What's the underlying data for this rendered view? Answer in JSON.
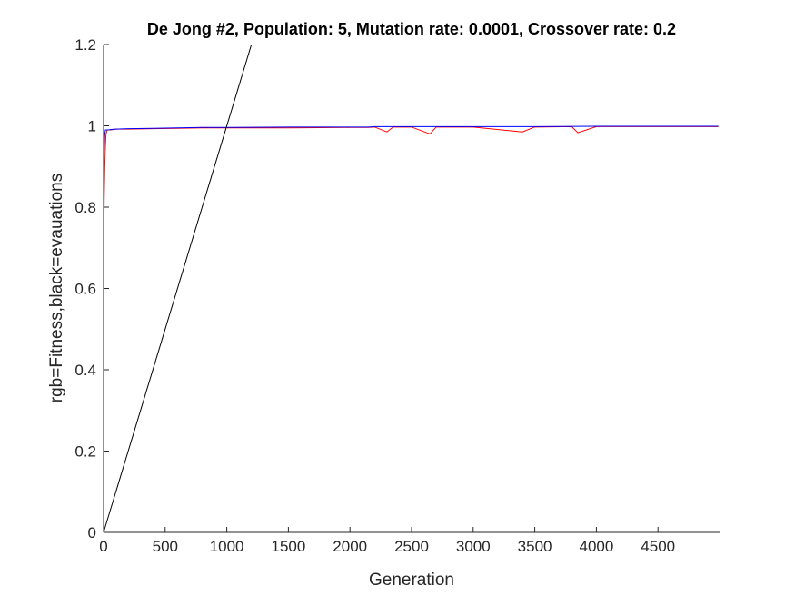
{
  "chart_data": {
    "type": "line",
    "title": "De Jong #2, Population: 5, Mutation rate: 0.0001, Crossover rate: 0.2",
    "xlabel": "Generation",
    "ylabel": "rgb=Fitness,black=evauations",
    "xlim": [
      0,
      5000
    ],
    "ylim": [
      0,
      1.2
    ],
    "xticks": [
      0,
      500,
      1000,
      1500,
      2000,
      2500,
      3000,
      3500,
      4000,
      4500
    ],
    "xtick_labels": [
      "0",
      "500",
      "1000",
      "1500",
      "2000",
      "2500",
      "3000",
      "3500",
      "4000",
      "4500"
    ],
    "yticks": [
      0,
      0.2,
      0.4,
      0.6,
      0.8,
      1,
      1.2
    ],
    "ytick_labels": [
      "0",
      "0.2",
      "0.4",
      "0.6",
      "0.8",
      "1",
      "1.2"
    ],
    "grid": false,
    "series": [
      {
        "color": "#ff0000",
        "x": [
          0,
          5,
          10,
          15,
          20,
          30,
          40,
          60,
          100,
          200,
          400,
          600,
          800,
          1000,
          1500,
          2000,
          2150,
          2200,
          2300,
          2350,
          2500,
          2650,
          2700,
          3000,
          3400,
          3500,
          3800,
          3850,
          4000,
          4500,
          4990
        ],
        "y": [
          0.7,
          0.82,
          0.9,
          0.95,
          0.98,
          0.99,
          0.99,
          0.99,
          0.992,
          0.992,
          0.993,
          0.994,
          0.995,
          0.995,
          0.995,
          0.996,
          0.996,
          0.997,
          0.985,
          0.997,
          0.997,
          0.98,
          0.997,
          0.997,
          0.985,
          0.997,
          0.998,
          0.983,
          0.998,
          0.998,
          0.998
        ]
      },
      {
        "color": "#0000ff",
        "x": [
          0,
          5,
          10,
          15,
          20,
          30,
          40,
          60,
          100,
          200,
          400,
          600,
          800,
          1000,
          1500,
          2000,
          2150,
          2200,
          2500,
          3000,
          3500,
          4000,
          4500,
          4990
        ],
        "y": [
          0.88,
          0.95,
          0.98,
          0.99,
          0.99,
          0.99,
          0.99,
          0.991,
          0.992,
          0.993,
          0.994,
          0.995,
          0.996,
          0.996,
          0.997,
          0.997,
          0.997,
          0.998,
          0.998,
          0.998,
          0.998,
          0.999,
          0.999,
          0.999
        ]
      },
      {
        "color": "#000000",
        "x": [
          0,
          1200
        ],
        "y": [
          0,
          1.2
        ]
      }
    ]
  }
}
